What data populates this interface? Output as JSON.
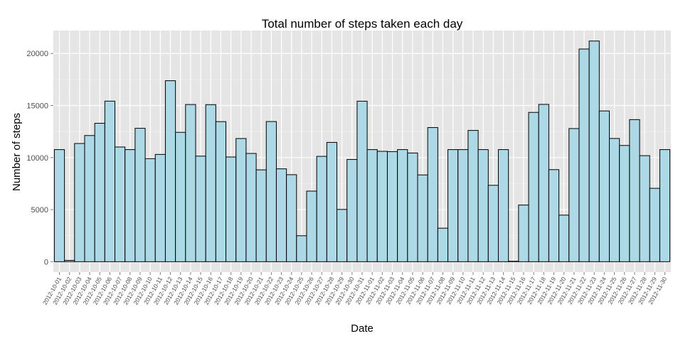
{
  "chart_data": {
    "type": "bar",
    "title": "Total number of steps taken each day",
    "xlabel": "Date",
    "ylabel": "Number of steps",
    "ylim": [
      0,
      22000
    ],
    "yticks": [
      0,
      5000,
      10000,
      15000,
      20000
    ],
    "grid": true,
    "colors": {
      "panel": "#e5e5e5",
      "grid_major": "#ffffff",
      "grid_minor": "#f2f2f2",
      "bar_fill": "#add8e6",
      "bar_stroke": "#000000"
    },
    "categories": [
      "2012-10-01",
      "2012-10-02",
      "2012-10-03",
      "2012-10-04",
      "2012-10-05",
      "2012-10-06",
      "2012-10-07",
      "2012-10-08",
      "2012-10-09",
      "2012-10-10",
      "2012-10-11",
      "2012-10-12",
      "2012-10-13",
      "2012-10-14",
      "2012-10-15",
      "2012-10-16",
      "2012-10-17",
      "2012-10-18",
      "2012-10-19",
      "2012-10-20",
      "2012-10-21",
      "2012-10-22",
      "2012-10-23",
      "2012-10-24",
      "2012-10-25",
      "2012-10-26",
      "2012-10-27",
      "2012-10-28",
      "2012-10-29",
      "2012-10-30",
      "2012-10-31",
      "2012-11-01",
      "2012-11-02",
      "2012-11-03",
      "2012-11-04",
      "2012-11-05",
      "2012-11-06",
      "2012-11-07",
      "2012-11-08",
      "2012-11-09",
      "2012-11-10",
      "2012-11-11",
      "2012-11-12",
      "2012-11-13",
      "2012-11-14",
      "2012-11-15",
      "2012-11-16",
      "2012-11-17",
      "2012-11-18",
      "2012-11-19",
      "2012-11-20",
      "2012-11-21",
      "2012-11-22",
      "2012-11-23",
      "2012-11-24",
      "2012-11-25",
      "2012-11-26",
      "2012-11-27",
      "2012-11-28",
      "2012-11-29",
      "2012-11-30"
    ],
    "values": [
      10766,
      126,
      11352,
      12116,
      13294,
      15420,
      11015,
      10766,
      12811,
      9900,
      10304,
      17382,
      12426,
      15098,
      10139,
      15084,
      13452,
      10056,
      11829,
      10395,
      8821,
      13460,
      8918,
      8355,
      2492,
      6778,
      10119,
      11458,
      5018,
      9819,
      15414,
      10766,
      10600,
      10571,
      10766,
      10439,
      8334,
      12883,
      3219,
      10766,
      10766,
      12608,
      10765,
      7336,
      10766,
      41,
      5441,
      14339,
      15110,
      8841,
      4472,
      12787,
      20427,
      21194,
      14478,
      11834,
      11162,
      13646,
      10183,
      7047,
      10766
    ]
  }
}
